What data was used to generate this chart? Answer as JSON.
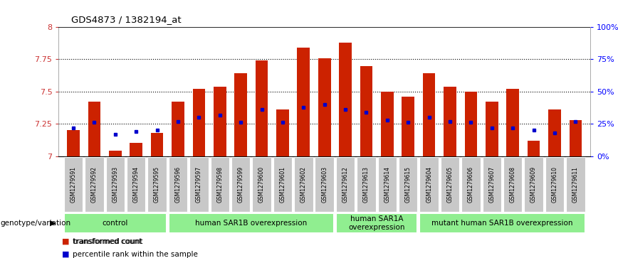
{
  "title": "GDS4873 / 1382194_at",
  "samples": [
    "GSM1279591",
    "GSM1279592",
    "GSM1279593",
    "GSM1279594",
    "GSM1279595",
    "GSM1279596",
    "GSM1279597",
    "GSM1279598",
    "GSM1279599",
    "GSM1279600",
    "GSM1279601",
    "GSM1279602",
    "GSM1279603",
    "GSM1279612",
    "GSM1279613",
    "GSM1279614",
    "GSM1279615",
    "GSM1279604",
    "GSM1279605",
    "GSM1279606",
    "GSM1279607",
    "GSM1279608",
    "GSM1279609",
    "GSM1279610",
    "GSM1279611"
  ],
  "bar_values": [
    7.2,
    7.42,
    7.04,
    7.1,
    7.18,
    7.42,
    7.52,
    7.54,
    7.64,
    7.74,
    7.36,
    7.84,
    7.76,
    7.88,
    7.7,
    7.5,
    7.46,
    7.64,
    7.54,
    7.5,
    7.42,
    7.52,
    7.12,
    7.36,
    7.28
  ],
  "blue_dot_values": [
    7.22,
    7.26,
    7.17,
    7.19,
    7.2,
    7.27,
    7.3,
    7.32,
    7.26,
    7.36,
    7.26,
    7.38,
    7.4,
    7.36,
    7.34,
    7.28,
    7.26,
    7.3,
    7.27,
    7.26,
    7.22,
    7.22,
    7.2,
    7.18,
    7.27
  ],
  "groups": [
    {
      "label": "control",
      "start": 0,
      "end": 4
    },
    {
      "label": "human SAR1B overexpression",
      "start": 5,
      "end": 12
    },
    {
      "label": "human SAR1A\noverexpression",
      "start": 13,
      "end": 16
    },
    {
      "label": "mutant human SAR1B overexpression",
      "start": 17,
      "end": 24
    }
  ],
  "ymin": 7.0,
  "ymax": 8.0,
  "yticks": [
    7.0,
    7.25,
    7.5,
    7.75,
    8.0
  ],
  "ytick_labels": [
    "7",
    "7.25",
    "7.5",
    "7.75",
    "8"
  ],
  "right_ytick_percents": [
    0,
    25,
    50,
    75,
    100
  ],
  "right_ytick_labels": [
    "0%",
    "25%",
    "50%",
    "75%",
    "100%"
  ],
  "bar_color": "#CC2200",
  "dot_color": "#0000CC",
  "group_color": "#90EE90",
  "label_bg_color": "#C8C8C8",
  "genotype_label": "genotype/variation",
  "legend_items": [
    {
      "label": "transformed count",
      "color": "#CC2200"
    },
    {
      "label": "percentile rank within the sample",
      "color": "#0000CC"
    }
  ]
}
